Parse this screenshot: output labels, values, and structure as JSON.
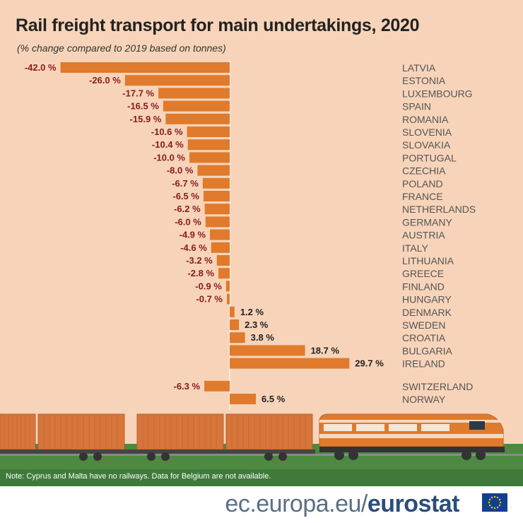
{
  "header": {
    "title": "Rail freight transport for main undertakings, 2020",
    "subtitle": "(% change compared to 2019 based on tonnes)"
  },
  "colors": {
    "background": "#f7d4b9",
    "bar": "#e07a2c",
    "negative_label": "#8b1a1a",
    "positive_label": "#222222",
    "country_label": "#555555",
    "grass": "#3f7a3a",
    "train_body": "#e07a2c",
    "footer_text": "#2c4e78"
  },
  "chart_data": {
    "type": "bar",
    "orientation": "horizontal",
    "title": "Rail freight transport for main undertakings, 2020",
    "subtitle": "(% change compared to 2019 based on tonnes)",
    "xlabel": "",
    "ylabel": "",
    "value_suffix": " %",
    "groups": [
      {
        "name": "main",
        "categories": [
          "LATVIA",
          "ESTONIA",
          "LUXEMBOURG",
          "SPAIN",
          "ROMANIA",
          "SLOVENIA",
          "SLOVAKIA",
          "PORTUGAL",
          "CZECHIA",
          "POLAND",
          "FRANCE",
          "NETHERLANDS",
          "GERMANY",
          "AUSTRIA",
          "ITALY",
          "LITHUANIA",
          "GREECE",
          "FINLAND",
          "HUNGARY",
          "DENMARK",
          "SWEDEN",
          "CROATIA",
          "BULGARIA",
          "IRELAND"
        ],
        "values": [
          -42.0,
          -26.0,
          -17.7,
          -16.5,
          -15.9,
          -10.6,
          -10.4,
          -10.0,
          -8.0,
          -6.7,
          -6.5,
          -6.2,
          -6.0,
          -4.9,
          -4.6,
          -3.2,
          -2.8,
          -0.9,
          -0.7,
          1.2,
          2.3,
          3.8,
          18.7,
          29.7
        ]
      },
      {
        "name": "non-EU",
        "categories": [
          "SWITZERLAND",
          "NORWAY"
        ],
        "values": [
          -6.3,
          6.5
        ]
      }
    ]
  },
  "footer": {
    "note": "Note: Cyprus and Malta have no railways. Data for Belgium are not available.",
    "site": "ec.europa.eu/",
    "brand": "eurostat"
  }
}
